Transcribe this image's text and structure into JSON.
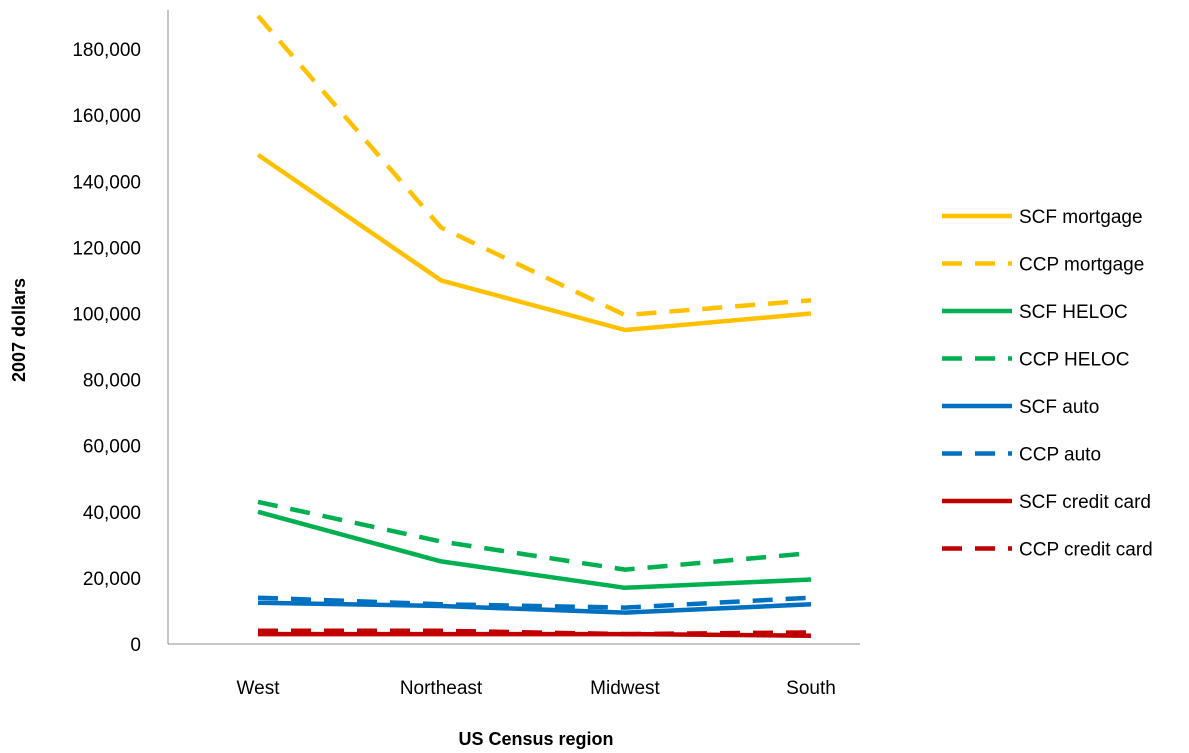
{
  "chart_data": {
    "type": "line",
    "title": "",
    "xlabel": "US Census region",
    "ylabel": "2007 dollars",
    "categories": [
      "West",
      "Northeast",
      "Midwest",
      "South"
    ],
    "ylim": [
      0,
      190000
    ],
    "yticks": [
      0,
      20000,
      40000,
      60000,
      80000,
      100000,
      120000,
      140000,
      160000,
      180000
    ],
    "ytick_labels": [
      "0",
      "20,000",
      "40,000",
      "60,000",
      "80,000",
      "100,000",
      "120,000",
      "140,000",
      "160,000",
      "180,000"
    ],
    "grid": false,
    "legend_position": "right",
    "series": [
      {
        "name": "SCF mortgage",
        "color": "#FFC000",
        "dash": "solid",
        "values": [
          148000,
          110000,
          95000,
          100000
        ]
      },
      {
        "name": "CCP mortgage",
        "color": "#FFC000",
        "dash": "dashed",
        "values": [
          190000,
          126000,
          99500,
          104000
        ]
      },
      {
        "name": "SCF HELOC",
        "color": "#00B050",
        "dash": "solid",
        "values": [
          40000,
          25000,
          17000,
          19500
        ]
      },
      {
        "name": "CCP HELOC",
        "color": "#00B050",
        "dash": "dashed",
        "values": [
          43000,
          31000,
          22500,
          27500
        ]
      },
      {
        "name": "SCF auto",
        "color": "#0070C0",
        "dash": "solid",
        "values": [
          12500,
          11500,
          9500,
          12000
        ]
      },
      {
        "name": "CCP auto",
        "color": "#0070C0",
        "dash": "dashed",
        "values": [
          14000,
          12000,
          11000,
          14000
        ]
      },
      {
        "name": "SCF credit card",
        "color": "#C00000",
        "dash": "solid",
        "values": [
          3000,
          3000,
          3000,
          2500
        ]
      },
      {
        "name": "CCP credit card",
        "color": "#C00000",
        "dash": "dashed",
        "values": [
          4000,
          4000,
          3000,
          3500
        ]
      }
    ]
  }
}
